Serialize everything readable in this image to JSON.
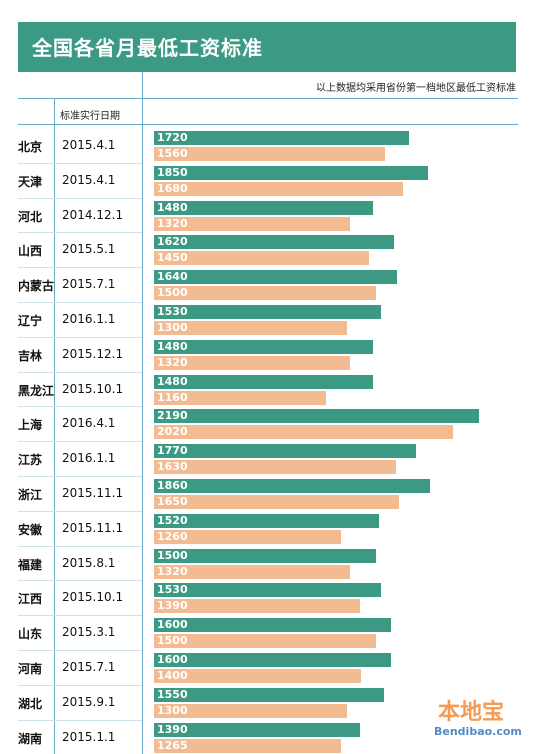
{
  "header": {
    "title": "全国各省月最低工资标准",
    "note": "以上数据均采用省份第一档地区最低工资标准",
    "date_column": "标准实行日期"
  },
  "watermark": {
    "logo": "本地宝",
    "domain": "Bendibao.com"
  },
  "colors": {
    "series_current": "#3c9a84",
    "series_previous": "#f3bb92",
    "rules": "#6aa9c6"
  },
  "chart_data": {
    "type": "bar",
    "orientation": "horizontal",
    "xlim": [
      0,
      2300
    ],
    "grid": false,
    "categories": [
      "北京",
      "天津",
      "河北",
      "山西",
      "内蒙古",
      "辽宁",
      "吉林",
      "黑龙江",
      "上海",
      "江苏",
      "浙江",
      "安徽",
      "福建",
      "江西",
      "山东",
      "河南",
      "湖北",
      "湖南"
    ],
    "dates": [
      "2015.4.1",
      "2015.4.1",
      "2014.12.1",
      "2015.5.1",
      "2015.7.1",
      "2016.1.1",
      "2015.12.1",
      "2015.10.1",
      "2016.4.1",
      "2016.1.1",
      "2015.11.1",
      "2015.11.1",
      "2015.8.1",
      "2015.10.1",
      "2015.3.1",
      "2015.7.1",
      "2015.9.1",
      "2015.1.1"
    ],
    "series": [
      {
        "values": [
          1720,
          1850,
          1480,
          1620,
          1640,
          1530,
          1480,
          1480,
          2190,
          1770,
          1860,
          1520,
          1500,
          1530,
          1600,
          1600,
          1550,
          1390
        ]
      },
      {
        "values": [
          1560,
          1680,
          1320,
          1450,
          1500,
          1300,
          1320,
          1160,
          2020,
          1630,
          1650,
          1260,
          1320,
          1390,
          1500,
          1400,
          1300,
          1265
        ]
      }
    ]
  }
}
